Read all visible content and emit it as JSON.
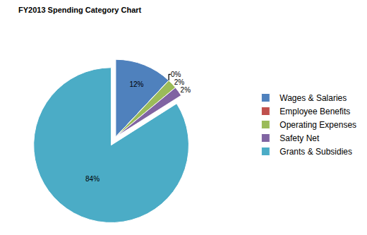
{
  "chart_data": {
    "type": "pie",
    "title": "FY2013 Spending Category Chart",
    "categories": [
      "Wages & Salaries",
      "Employee Benefits",
      "Operating Expenses",
      "Safety Net",
      "Grants & Subsidies"
    ],
    "values": [
      12,
      0,
      2,
      2,
      84
    ],
    "value_labels": [
      "12%",
      "0%",
      "2%",
      "2%",
      "84%"
    ],
    "colors": [
      "#4f81bd",
      "#c0504d",
      "#9bbb59",
      "#8064a2",
      "#4bacc6"
    ],
    "data_labels": true,
    "legend": "right"
  }
}
